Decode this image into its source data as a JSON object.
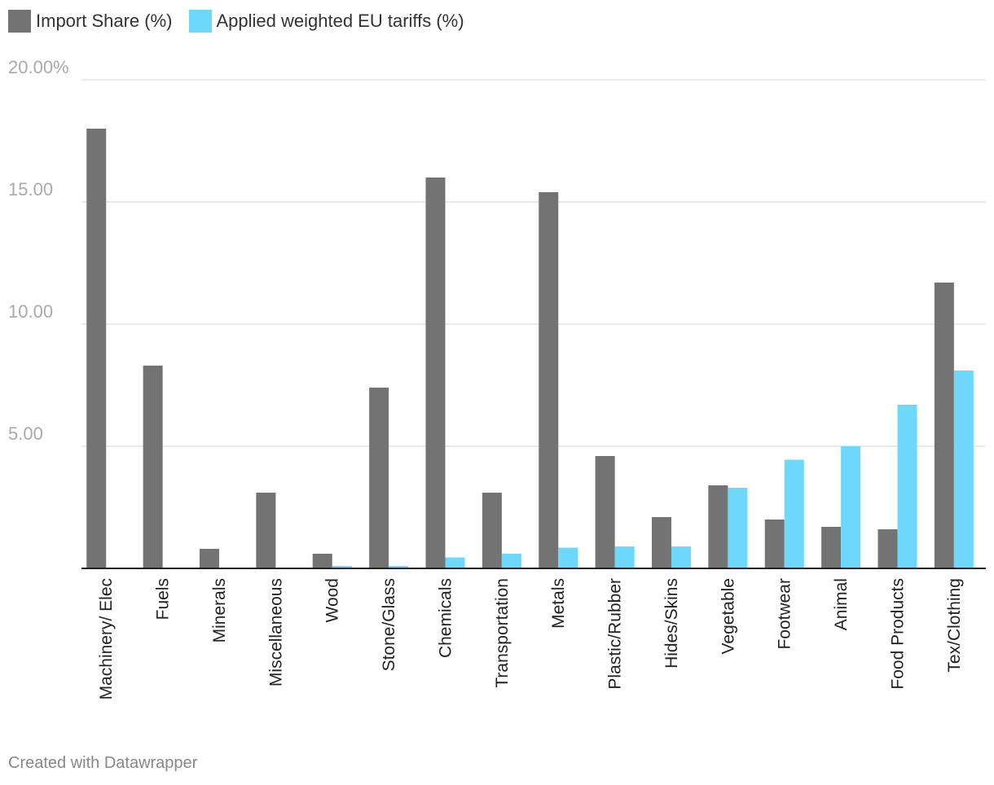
{
  "legend": {
    "series_a": "Import Share (%)",
    "series_b": "Applied weighted EU tariffs (%)"
  },
  "footer": {
    "credit": "Created with Datawrapper"
  },
  "colors": {
    "series_a": "#737373",
    "series_b": "#6dd8fc"
  },
  "chart_data": {
    "type": "bar",
    "title": "",
    "xlabel": "",
    "ylabel": "",
    "ylim": [
      0,
      20
    ],
    "yticks": [
      {
        "value": 20,
        "label": "20.00%"
      },
      {
        "value": 15,
        "label": "15.00"
      },
      {
        "value": 10,
        "label": "10.00"
      },
      {
        "value": 5,
        "label": "5.00"
      }
    ],
    "grid": true,
    "legend_position": "top-left",
    "categories": [
      "Machinery/ Elec",
      "Fuels",
      "Minerals",
      "Miscellaneous",
      "Wood",
      "Stone/Glass",
      "Chemicals",
      "Transportation",
      "Metals",
      "Plastic/Rubber",
      "Hides/Skins",
      "Vegetable",
      "Footwear",
      "Animal",
      "Food Products",
      "Tex/Clothing"
    ],
    "series": [
      {
        "name": "Import Share (%)",
        "values": [
          18.0,
          8.3,
          0.8,
          3.1,
          0.6,
          7.4,
          16.0,
          3.1,
          15.4,
          4.6,
          2.1,
          3.4,
          2.0,
          1.7,
          1.6,
          11.7
        ]
      },
      {
        "name": "Applied weighted EU tariffs (%)",
        "values": [
          0,
          0,
          0,
          0,
          0.1,
          0.1,
          0.45,
          0.6,
          0.85,
          0.9,
          0.9,
          3.3,
          4.45,
          5.0,
          6.7,
          8.1
        ]
      }
    ]
  }
}
